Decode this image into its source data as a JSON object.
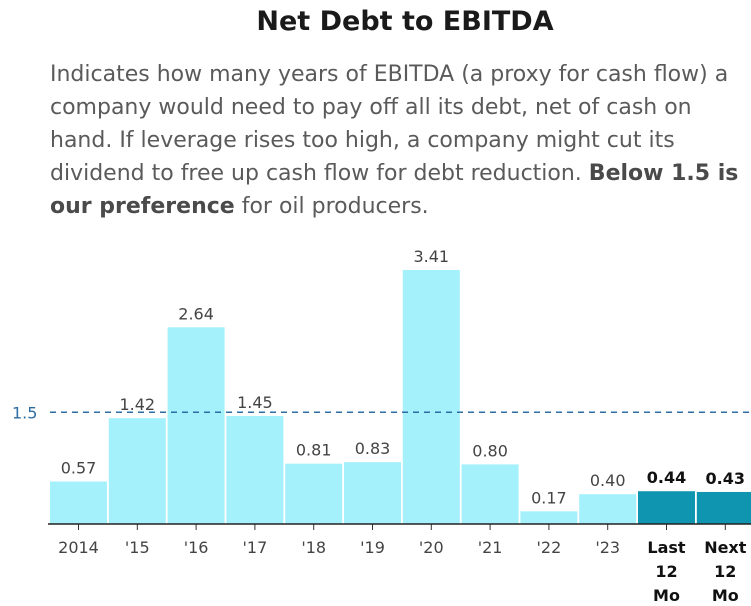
{
  "title": "Net Debt to EBITDA",
  "description": {
    "text": "Indicates how many years of EBITDA (a proxy for cash flow) a company would need to pay off all its debt, net of cash on hand. If leverage rises too high, a company might cut its dividend to free up cash flow for debt reduction. ",
    "bold": "Below 1.5 is our preference",
    "tail": " for oil producers."
  },
  "colors": {
    "actual": "#a4f0fb",
    "estimate": "#1095b1",
    "reference_line": "#2e6da4"
  },
  "chart_data": {
    "type": "bar",
    "title": "Net Debt to EBITDA",
    "categories": [
      "2014",
      "'15",
      "'16",
      "'17",
      "'18",
      "'19",
      "'20",
      "'21",
      "'22",
      "'23",
      "Last\n12\nMo",
      "Next\n12\nMo"
    ],
    "values": [
      0.57,
      1.42,
      2.64,
      1.45,
      0.81,
      0.83,
      3.41,
      0.8,
      0.17,
      0.4,
      0.44,
      0.43
    ],
    "value_labels": [
      "0.57",
      "1.42",
      "2.64",
      "1.45",
      "0.81",
      "0.83",
      "3.41",
      "0.80",
      "0.17",
      "0.40",
      "0.44",
      "0.43"
    ],
    "highlighted": [
      false,
      false,
      false,
      false,
      false,
      false,
      false,
      false,
      false,
      false,
      true,
      true
    ],
    "reference_line": {
      "value": 1.5,
      "label": "1.5",
      "style": "dashed"
    },
    "xlabel": "",
    "ylabel": "",
    "ylim": [
      0,
      3.6
    ],
    "grid": false,
    "legend": "none"
  }
}
